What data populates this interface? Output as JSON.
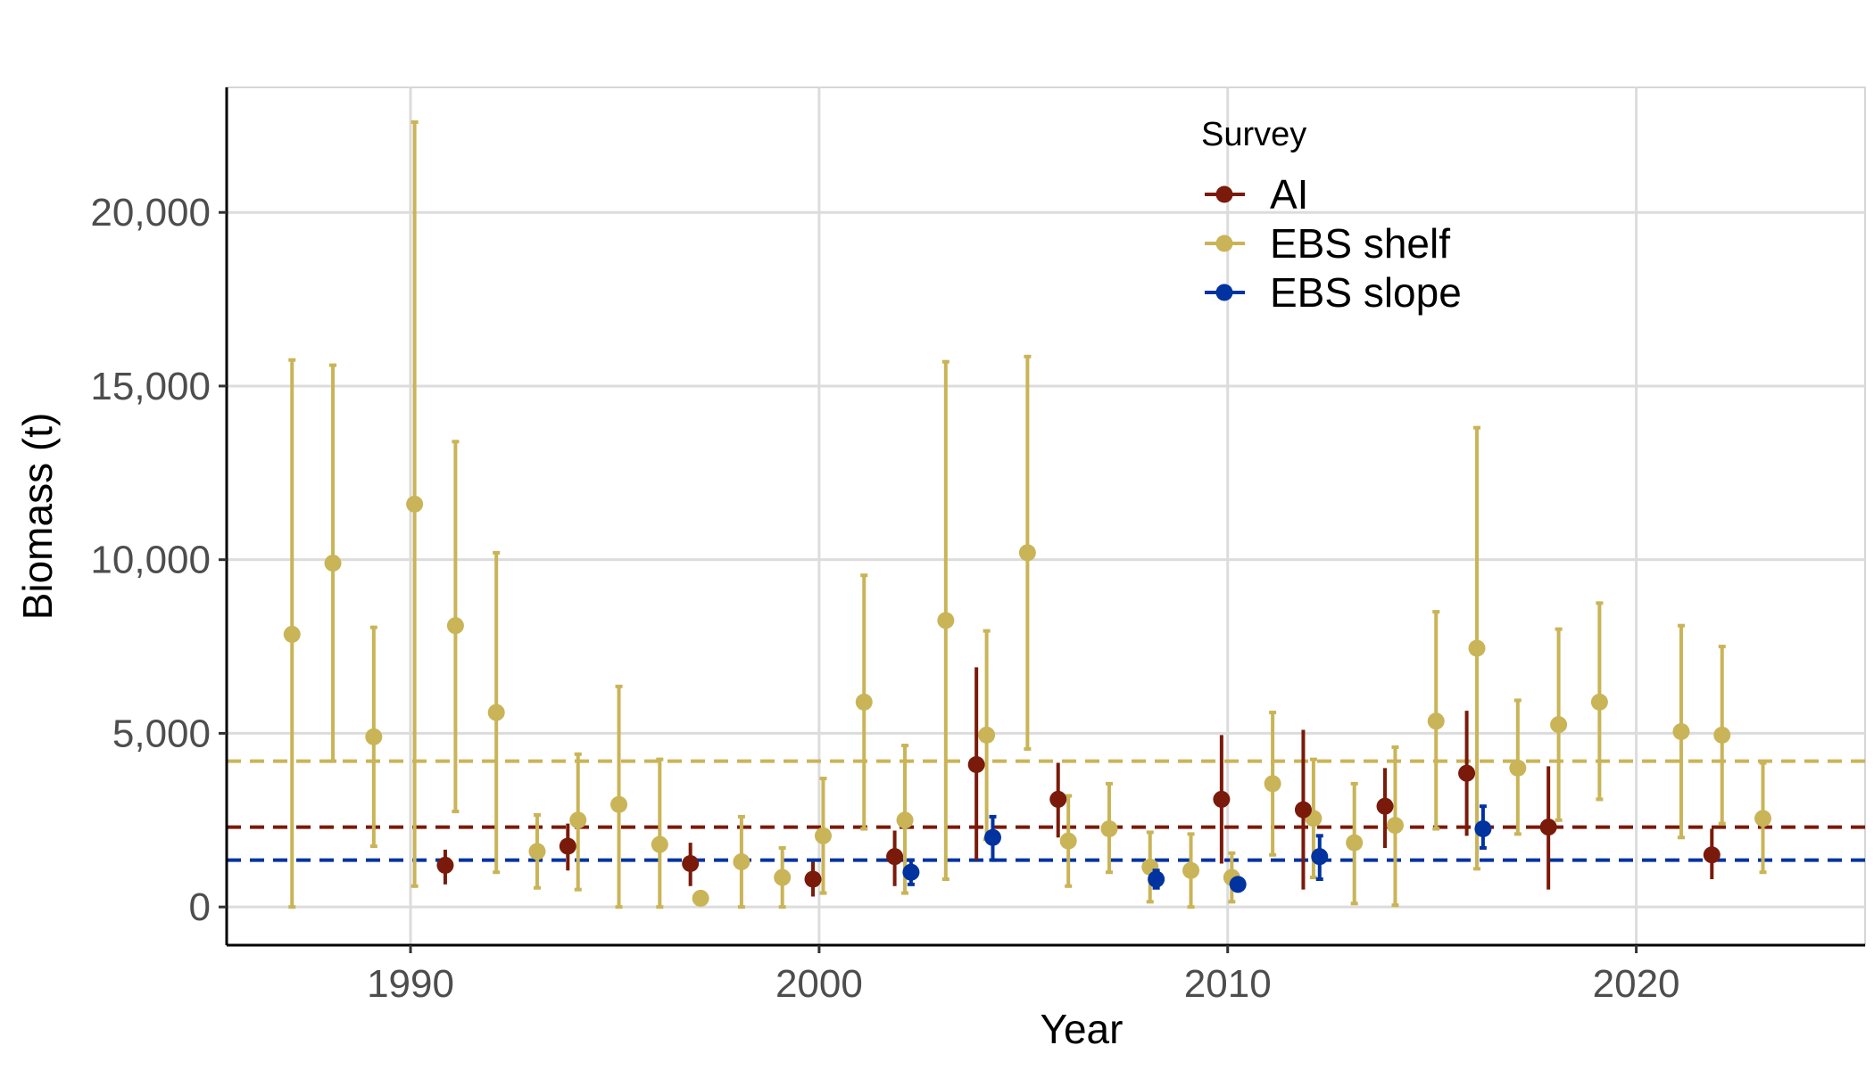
{
  "chart_data": {
    "type": "scatter",
    "xlabel": "Year",
    "ylabel": "Biomass (t)",
    "xlim": [
      1985.5,
      2025.6
    ],
    "ylim": [
      -1100,
      23600
    ],
    "xticks": [
      1990,
      2000,
      2010,
      2020
    ],
    "xtick_labels": [
      "1990",
      "2000",
      "2010",
      "2020"
    ],
    "yticks": [
      0,
      5000,
      10000,
      15000,
      20000
    ],
    "ytick_labels": [
      "0",
      "5,000",
      "10,000",
      "15,000",
      "20,000"
    ],
    "grid": true,
    "legend": {
      "title": "Survey",
      "position": "top-right-inside"
    },
    "series": [
      {
        "name": "AI",
        "color": "#7a1a0a",
        "mean_line": 2300,
        "points": [
          {
            "x": 1991,
            "y": 1200,
            "lo": 650,
            "hi": 1650
          },
          {
            "x": 1994,
            "y": 1750,
            "lo": 1050,
            "hi": 2400
          },
          {
            "x": 1997,
            "y": 1250,
            "lo": 600,
            "hi": 1850
          },
          {
            "x": 2000,
            "y": 800,
            "lo": 300,
            "hi": 1300
          },
          {
            "x": 2002,
            "y": 1450,
            "lo": 600,
            "hi": 2200
          },
          {
            "x": 2004,
            "y": 4100,
            "lo": 1350,
            "hi": 6900
          },
          {
            "x": 2006,
            "y": 3100,
            "lo": 2000,
            "hi": 4150
          },
          {
            "x": 2010,
            "y": 3100,
            "lo": 1250,
            "hi": 4950
          },
          {
            "x": 2012,
            "y": 2800,
            "lo": 500,
            "hi": 5100
          },
          {
            "x": 2014,
            "y": 2900,
            "lo": 1700,
            "hi": 4000
          },
          {
            "x": 2016,
            "y": 3850,
            "lo": 2050,
            "hi": 5650
          },
          {
            "x": 2018,
            "y": 2300,
            "lo": 500,
            "hi": 4050
          },
          {
            "x": 2022,
            "y": 1500,
            "lo": 800,
            "hi": 2250
          }
        ]
      },
      {
        "name": "EBS shelf",
        "color": "#c9b458",
        "mean_line": 4200,
        "points": [
          {
            "x": 1987,
            "y": 7850,
            "lo": 0,
            "hi": 15750
          },
          {
            "x": 1988,
            "y": 9900,
            "lo": 4200,
            "hi": 15600
          },
          {
            "x": 1989,
            "y": 4900,
            "lo": 1750,
            "hi": 8050
          },
          {
            "x": 1990,
            "y": 11600,
            "lo": 600,
            "hi": 22600
          },
          {
            "x": 1991,
            "y": 8100,
            "lo": 2750,
            "hi": 13400
          },
          {
            "x": 1992,
            "y": 5600,
            "lo": 1000,
            "hi": 10200
          },
          {
            "x": 1993,
            "y": 1600,
            "lo": 550,
            "hi": 2650
          },
          {
            "x": 1994,
            "y": 2500,
            "lo": 500,
            "hi": 4400
          },
          {
            "x": 1995,
            "y": 2950,
            "lo": 0,
            "hi": 6350
          },
          {
            "x": 1996,
            "y": 1800,
            "lo": 0,
            "hi": 4250
          },
          {
            "x": 1997,
            "y": 250,
            "lo": 250,
            "hi": 250
          },
          {
            "x": 1998,
            "y": 1300,
            "lo": 0,
            "hi": 2600
          },
          {
            "x": 1999,
            "y": 850,
            "lo": 0,
            "hi": 1700
          },
          {
            "x": 2000,
            "y": 2050,
            "lo": 400,
            "hi": 3700
          },
          {
            "x": 2001,
            "y": 5900,
            "lo": 2250,
            "hi": 9550
          },
          {
            "x": 2002,
            "y": 2500,
            "lo": 400,
            "hi": 4650
          },
          {
            "x": 2003,
            "y": 8250,
            "lo": 800,
            "hi": 15700
          },
          {
            "x": 2004,
            "y": 4950,
            "lo": 1950,
            "hi": 7950
          },
          {
            "x": 2005,
            "y": 10200,
            "lo": 4550,
            "hi": 15850
          },
          {
            "x": 2006,
            "y": 1900,
            "lo": 600,
            "hi": 3200
          },
          {
            "x": 2007,
            "y": 2250,
            "lo": 1000,
            "hi": 3550
          },
          {
            "x": 2008,
            "y": 1150,
            "lo": 150,
            "hi": 2150
          },
          {
            "x": 2009,
            "y": 1050,
            "lo": 0,
            "hi": 2100
          },
          {
            "x": 2010,
            "y": 850,
            "lo": 150,
            "hi": 1550
          },
          {
            "x": 2011,
            "y": 3550,
            "lo": 1500,
            "hi": 5600
          },
          {
            "x": 2012,
            "y": 2550,
            "lo": 850,
            "hi": 4250
          },
          {
            "x": 2013,
            "y": 1850,
            "lo": 100,
            "hi": 3550
          },
          {
            "x": 2014,
            "y": 2350,
            "lo": 50,
            "hi": 4600
          },
          {
            "x": 2015,
            "y": 5350,
            "lo": 2250,
            "hi": 8500
          },
          {
            "x": 2016,
            "y": 7450,
            "lo": 1100,
            "hi": 13800
          },
          {
            "x": 2017,
            "y": 4000,
            "lo": 2100,
            "hi": 5950
          },
          {
            "x": 2018,
            "y": 5250,
            "lo": 2500,
            "hi": 8000
          },
          {
            "x": 2019,
            "y": 5900,
            "lo": 3100,
            "hi": 8750
          },
          {
            "x": 2021,
            "y": 5050,
            "lo": 2000,
            "hi": 8100
          },
          {
            "x": 2022,
            "y": 4950,
            "lo": 2400,
            "hi": 7500
          },
          {
            "x": 2023,
            "y": 2550,
            "lo": 1000,
            "hi": 4150
          }
        ]
      },
      {
        "name": "EBS slope",
        "color": "#0033a0",
        "mean_line": 1350,
        "points": [
          {
            "x": 2002,
            "y": 1000,
            "lo": 650,
            "hi": 1350
          },
          {
            "x": 2004,
            "y": 2000,
            "lo": 1350,
            "hi": 2600
          },
          {
            "x": 2008,
            "y": 800,
            "lo": 550,
            "hi": 1050
          },
          {
            "x": 2010,
            "y": 650,
            "lo": 500,
            "hi": 800
          },
          {
            "x": 2012,
            "y": 1450,
            "lo": 800,
            "hi": 2050
          },
          {
            "x": 2016,
            "y": 2250,
            "lo": 1700,
            "hi": 2900
          }
        ]
      }
    ]
  }
}
